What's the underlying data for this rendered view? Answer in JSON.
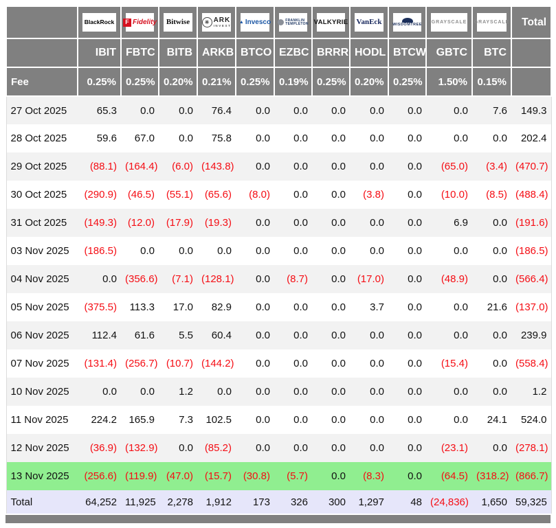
{
  "colors": {
    "header_bg": "#808080",
    "row_alt": "#f2f2f2",
    "highlight_row": "#90ee90",
    "total_row_bg": "#e6e6fa",
    "negative_text": "#f50d14",
    "header_text": "#ffffff"
  },
  "chart_data": {
    "type": "table",
    "fee_label": "Fee",
    "total_label": "Total",
    "columns": [
      {
        "ticker": "IBIT",
        "fee": "0.25%",
        "provider": "BlackRock",
        "logo": {
          "style": "blackrock",
          "lines": [
            "BlackRock"
          ]
        }
      },
      {
        "ticker": "FBTC",
        "fee": "0.25%",
        "provider": "Fidelity",
        "logo": {
          "style": "fidelity",
          "icon": "F",
          "lines": [
            "Fidelity"
          ]
        }
      },
      {
        "ticker": "BITB",
        "fee": "0.20%",
        "provider": "Bitwise",
        "logo": {
          "style": "bitwise",
          "lines": [
            "Bitwise"
          ]
        }
      },
      {
        "ticker": "ARKB",
        "fee": "0.21%",
        "provider": "ARK Invest",
        "logo": {
          "style": "ark",
          "lines": [
            "ARK",
            "INVEST"
          ]
        }
      },
      {
        "ticker": "BTCO",
        "fee": "0.25%",
        "provider": "Invesco",
        "logo": {
          "style": "invesco",
          "lines": [
            "Invesco"
          ]
        }
      },
      {
        "ticker": "EZBC",
        "fee": "0.19%",
        "provider": "Franklin Templeton",
        "logo": {
          "style": "franklin",
          "lines": [
            "FRANKLIN",
            "TEMPLETON"
          ]
        }
      },
      {
        "ticker": "BRRR",
        "fee": "0.25%",
        "provider": "Valkyrie",
        "logo": {
          "style": "valkyrie",
          "lines": [
            "VALKYRIE"
          ]
        }
      },
      {
        "ticker": "HODL",
        "fee": "0.20%",
        "provider": "VanEck",
        "logo": {
          "style": "vaneck",
          "lines": [
            "VanEck"
          ]
        }
      },
      {
        "ticker": "BTCW",
        "fee": "0.25%",
        "provider": "WisdomTree",
        "logo": {
          "style": "wisdomtree",
          "lines": [
            "WISDOMTREE"
          ]
        }
      },
      {
        "ticker": "GBTC",
        "fee": "1.50%",
        "provider": "Grayscale",
        "logo": {
          "style": "grayscale",
          "lines": [
            "GRAYSCALE"
          ]
        }
      },
      {
        "ticker": "BTC",
        "fee": "0.15%",
        "provider": "Grayscale",
        "logo": {
          "style": "grayscale",
          "lines": [
            "GRAYSCALE"
          ]
        }
      }
    ],
    "rows": [
      {
        "date": "27 Oct 2025",
        "values": [
          "65.3",
          "0.0",
          "0.0",
          "76.4",
          "0.0",
          "0.0",
          "0.0",
          "0.0",
          "0.0",
          "0.0",
          "7.6",
          "149.3"
        ]
      },
      {
        "date": "28 Oct 2025",
        "values": [
          "59.6",
          "67.0",
          "0.0",
          "75.8",
          "0.0",
          "0.0",
          "0.0",
          "0.0",
          "0.0",
          "0.0",
          "0.0",
          "202.4"
        ]
      },
      {
        "date": "29 Oct 2025",
        "values": [
          "(88.1)",
          "(164.4)",
          "(6.0)",
          "(143.8)",
          "0.0",
          "0.0",
          "0.0",
          "0.0",
          "0.0",
          "(65.0)",
          "(3.4)",
          "(470.7)"
        ]
      },
      {
        "date": "30 Oct 2025",
        "values": [
          "(290.9)",
          "(46.5)",
          "(55.1)",
          "(65.6)",
          "(8.0)",
          "0.0",
          "0.0",
          "(3.8)",
          "0.0",
          "(10.0)",
          "(8.5)",
          "(488.4)"
        ]
      },
      {
        "date": "31 Oct 2025",
        "values": [
          "(149.3)",
          "(12.0)",
          "(17.9)",
          "(19.3)",
          "0.0",
          "0.0",
          "0.0",
          "0.0",
          "0.0",
          "6.9",
          "0.0",
          "(191.6)"
        ]
      },
      {
        "date": "03 Nov 2025",
        "values": [
          "(186.5)",
          "0.0",
          "0.0",
          "0.0",
          "0.0",
          "0.0",
          "0.0",
          "0.0",
          "0.0",
          "0.0",
          "0.0",
          "(186.5)"
        ]
      },
      {
        "date": "04 Nov 2025",
        "values": [
          "0.0",
          "(356.6)",
          "(7.1)",
          "(128.1)",
          "0.0",
          "(8.7)",
          "0.0",
          "(17.0)",
          "0.0",
          "(48.9)",
          "0.0",
          "(566.4)"
        ]
      },
      {
        "date": "05 Nov 2025",
        "values": [
          "(375.5)",
          "113.3",
          "17.0",
          "82.9",
          "0.0",
          "0.0",
          "0.0",
          "3.7",
          "0.0",
          "0.0",
          "21.6",
          "(137.0)"
        ]
      },
      {
        "date": "06 Nov 2025",
        "values": [
          "112.4",
          "61.6",
          "5.5",
          "60.4",
          "0.0",
          "0.0",
          "0.0",
          "0.0",
          "0.0",
          "0.0",
          "0.0",
          "239.9"
        ]
      },
      {
        "date": "07 Nov 2025",
        "values": [
          "(131.4)",
          "(256.7)",
          "(10.7)",
          "(144.2)",
          "0.0",
          "0.0",
          "0.0",
          "0.0",
          "0.0",
          "(15.4)",
          "0.0",
          "(558.4)"
        ]
      },
      {
        "date": "10 Nov 2025",
        "values": [
          "0.0",
          "0.0",
          "1.2",
          "0.0",
          "0.0",
          "0.0",
          "0.0",
          "0.0",
          "0.0",
          "0.0",
          "0.0",
          "1.2"
        ]
      },
      {
        "date": "11 Nov 2025",
        "values": [
          "224.2",
          "165.9",
          "7.3",
          "102.5",
          "0.0",
          "0.0",
          "0.0",
          "0.0",
          "0.0",
          "0.0",
          "24.1",
          "524.0"
        ]
      },
      {
        "date": "12 Nov 2025",
        "values": [
          "(36.9)",
          "(132.9)",
          "0.0",
          "(85.2)",
          "0.0",
          "0.0",
          "0.0",
          "0.0",
          "0.0",
          "(23.1)",
          "0.0",
          "(278.1)"
        ]
      },
      {
        "date": "13 Nov 2025",
        "highlight": true,
        "values": [
          "(256.6)",
          "(119.9)",
          "(47.0)",
          "(15.7)",
          "(30.8)",
          "(5.7)",
          "0.0",
          "(8.3)",
          "0.0",
          "(64.5)",
          "(318.2)",
          "(866.7)"
        ]
      }
    ],
    "total_row": {
      "label": "Total",
      "values": [
        "64,252",
        "11,925",
        "2,278",
        "1,912",
        "173",
        "326",
        "300",
        "1,297",
        "48",
        "(24,836)",
        "1,650",
        "59,325"
      ]
    }
  }
}
